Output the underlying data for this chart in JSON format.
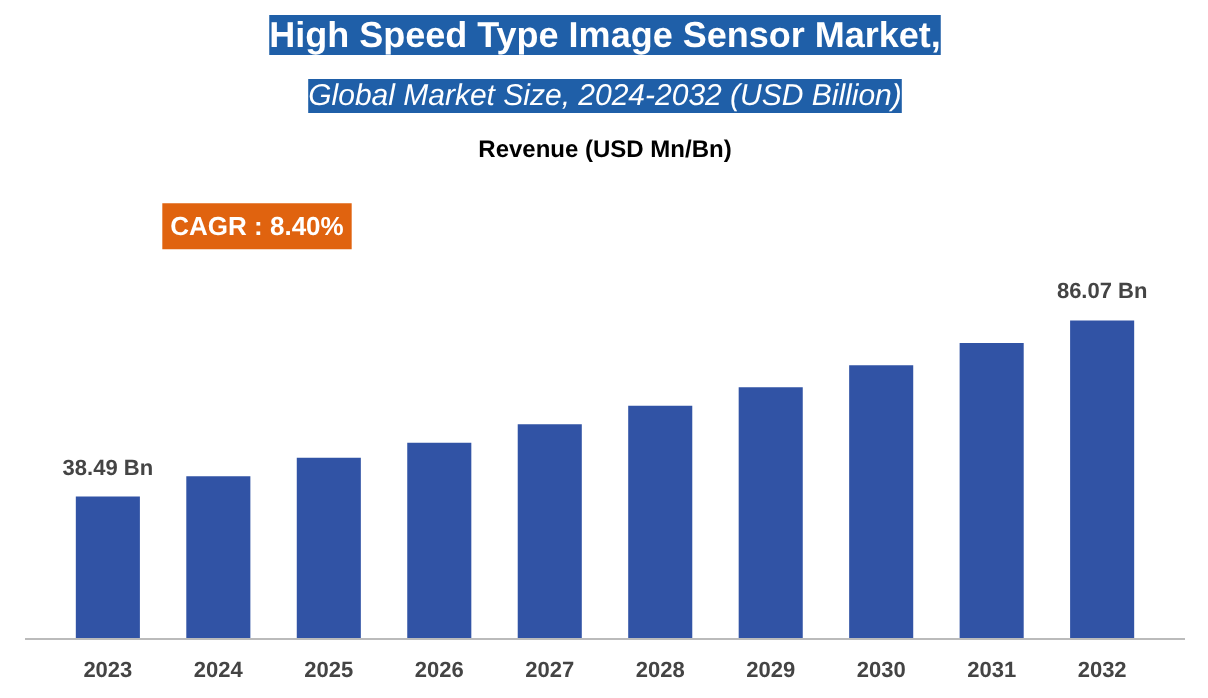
{
  "chart_data": {
    "type": "bar",
    "title": "High Speed Type Image Sensor Market,",
    "subtitle": "Global Market Size, 2024-2032 (USD Billion)",
    "annotations": [
      "Revenue (USD Mn/Bn)",
      "CAGR : 8.40%"
    ],
    "categories": [
      "2023",
      "2024",
      "2025",
      "2026",
      "2027",
      "2028",
      "2029",
      "2030",
      "2031",
      "2032"
    ],
    "values": [
      38.49,
      44,
      49,
      53,
      58,
      63,
      68,
      74,
      80,
      86.07
    ],
    "value_labels": [
      "38.49 Bn",
      null,
      null,
      null,
      null,
      null,
      null,
      null,
      null,
      "86.07 Bn"
    ],
    "color": "#3153a5",
    "grid": false
  }
}
